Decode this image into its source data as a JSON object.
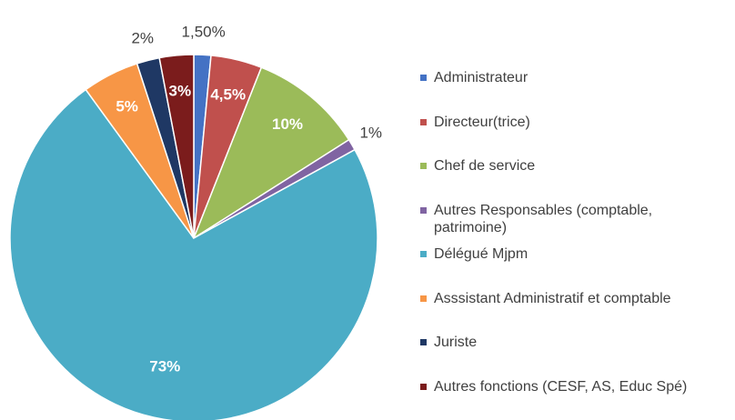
{
  "chart_data": {
    "type": "pie",
    "categories": [
      "Administrateur",
      "Directeur(trice)",
      "Chef de service",
      "Autres Responsables (comptable, patrimoine)",
      "Délégué Mjpm",
      "Asssistant Administratif et comptable",
      "Juriste",
      "Autres fonctions (CESF, AS, Educ Spé)"
    ],
    "values": [
      1.5,
      4.5,
      10,
      1,
      73,
      5,
      2,
      3
    ],
    "value_labels": [
      "1,50%",
      "4,5%",
      "10%",
      "1%",
      "73%",
      "5%",
      "2%",
      "3%"
    ],
    "colors": [
      "#4472c4",
      "#c0504d",
      "#9bbb59",
      "#8064a2",
      "#4bacc6",
      "#f79646",
      "#1f3864",
      "#7b1c1c"
    ],
    "legend": "right"
  }
}
